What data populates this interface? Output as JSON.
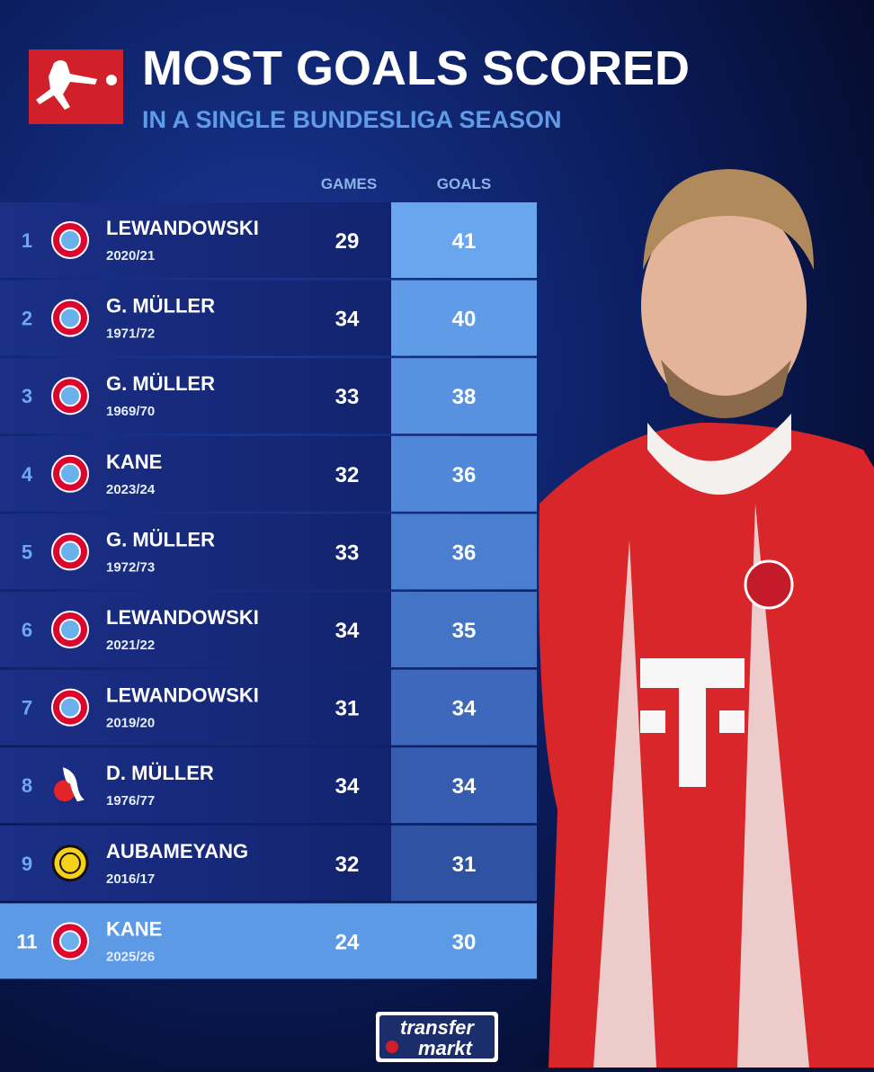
{
  "header": {
    "title": "MOST GOALS SCORED",
    "subtitle": "IN A SINGLE BUNDESLIGA SEASON"
  },
  "table": {
    "columns": [
      "GAMES",
      "GOALS"
    ],
    "rows": [
      {
        "rank": "1",
        "name": "LEWANDOWSKI",
        "season": "2020/21",
        "games": "29",
        "goals": "41"
      },
      {
        "rank": "2",
        "name": "G. MÜLLER",
        "season": "1971/72",
        "games": "34",
        "goals": "40"
      },
      {
        "rank": "3",
        "name": "G. MÜLLER",
        "season": "1969/70",
        "games": "33",
        "goals": "38"
      },
      {
        "rank": "4",
        "name": "KANE",
        "season": "2023/24",
        "games": "32",
        "goals": "36"
      },
      {
        "rank": "5",
        "name": "G. MÜLLER",
        "season": "1972/73",
        "games": "33",
        "goals": "36"
      },
      {
        "rank": "6",
        "name": "LEWANDOWSKI",
        "season": "2021/22",
        "games": "34",
        "goals": "35"
      },
      {
        "rank": "7",
        "name": "LEWANDOWSKI",
        "season": "2019/20",
        "games": "31",
        "goals": "34"
      },
      {
        "rank": "8",
        "name": "D. MÜLLER",
        "season": "1976/77",
        "games": "34",
        "goals": "34"
      },
      {
        "rank": "9",
        "name": "AUBAMEYANG",
        "season": "2016/17",
        "games": "32",
        "goals": "31"
      },
      {
        "rank": "11",
        "name": "KANE",
        "season": "2025/26",
        "games": "24",
        "goals": "30"
      }
    ]
  },
  "footer": {
    "logo_top": "transfer",
    "logo_bottom": "markt"
  }
}
